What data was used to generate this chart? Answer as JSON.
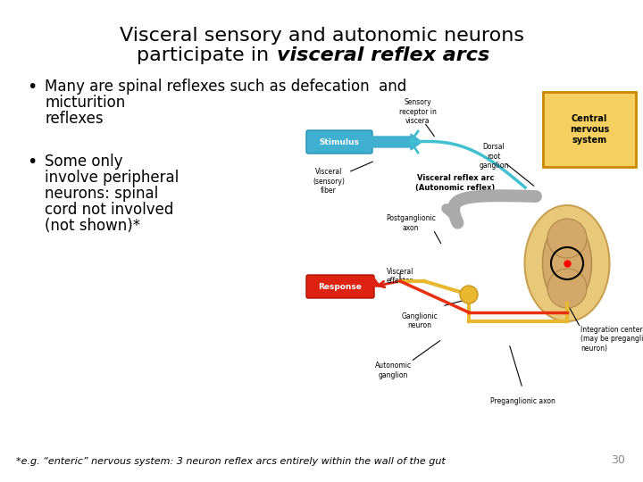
{
  "background_color": "#ffffff",
  "title_line1": "Visceral sensory and autonomic neurons",
  "title_line2_normal": "participate in ",
  "title_line2_bold_italic": "visceral reflex arcs",
  "bullet1_line1": "Many are spinal reflexes such as defecation  and",
  "bullet1_line2": "micturition",
  "bullet1_line3": "reflexes",
  "bullet2_line1": "Some only",
  "bullet2_line2": "involve peripheral",
  "bullet2_line3": "neurons: spinal",
  "bullet2_line4": "cord not involved",
  "bullet2_line5": "(not shown)*",
  "footnote": "*e.g. “enteric” nervous system: 3 neuron reflex arcs entirely within the wall of the gut",
  "page_number": "30",
  "title_fontsize": 16,
  "bullet_fontsize": 12,
  "footnote_fontsize": 8,
  "text_color": "#000000"
}
